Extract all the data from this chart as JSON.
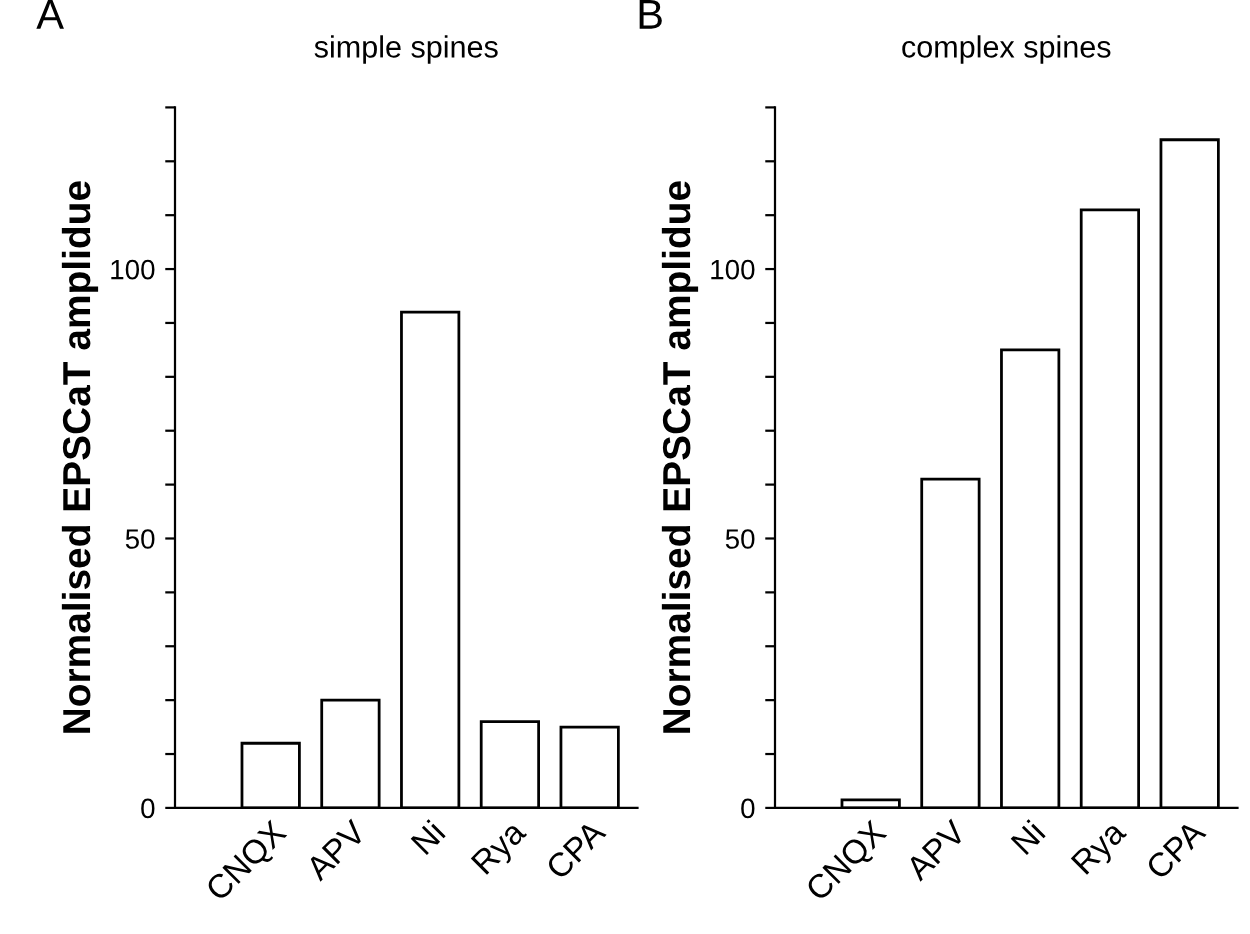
{
  "chart_data": [
    {
      "type": "bar",
      "title": "simple spines",
      "ylabel": "Normalised EPSCaT amplidue",
      "annotations": [
        "A"
      ],
      "categories": [
        "CNQX",
        "APV",
        "Ni",
        "Rya",
        "CPA"
      ],
      "values": [
        12,
        20,
        92,
        16,
        15
      ],
      "color": "#ffffff",
      "ylim": [
        0,
        130
      ],
      "yticks": [
        0,
        {
          "value": 10,
          "label": null
        },
        {
          "value": 20,
          "label": null
        },
        {
          "value": 30,
          "label": null
        },
        {
          "value": 40,
          "label": null
        },
        50,
        {
          "value": 60,
          "label": null
        },
        {
          "value": 70,
          "label": null
        },
        {
          "value": 80,
          "label": null
        },
        {
          "value": 90,
          "label": null
        },
        100,
        {
          "value": 110,
          "label": null
        },
        {
          "value": 120,
          "label": null
        },
        {
          "value": 130,
          "label": null
        }
      ],
      "grid": false
    },
    {
      "type": "bar",
      "title": "complex spines",
      "ylabel": "Normalised EPSCaT amplidue",
      "annotations": [
        "B"
      ],
      "categories": [
        "CNQX",
        "APV",
        "Ni",
        "Rya",
        "CPA"
      ],
      "values": [
        1.5,
        61,
        85,
        111,
        124
      ],
      "color": "#ffffff",
      "ylim": [
        0,
        130
      ],
      "yticks": [
        0,
        {
          "value": 10,
          "label": null
        },
        {
          "value": 20,
          "label": null
        },
        {
          "value": 30,
          "label": null
        },
        {
          "value": 40,
          "label": null
        },
        50,
        {
          "value": 60,
          "label": null
        },
        {
          "value": 70,
          "label": null
        },
        {
          "value": 80,
          "label": null
        },
        {
          "value": 90,
          "label": null
        },
        100,
        {
          "value": 110,
          "label": null
        },
        {
          "value": 120,
          "label": null
        },
        {
          "value": 130,
          "label": null
        }
      ],
      "grid": false
    }
  ]
}
